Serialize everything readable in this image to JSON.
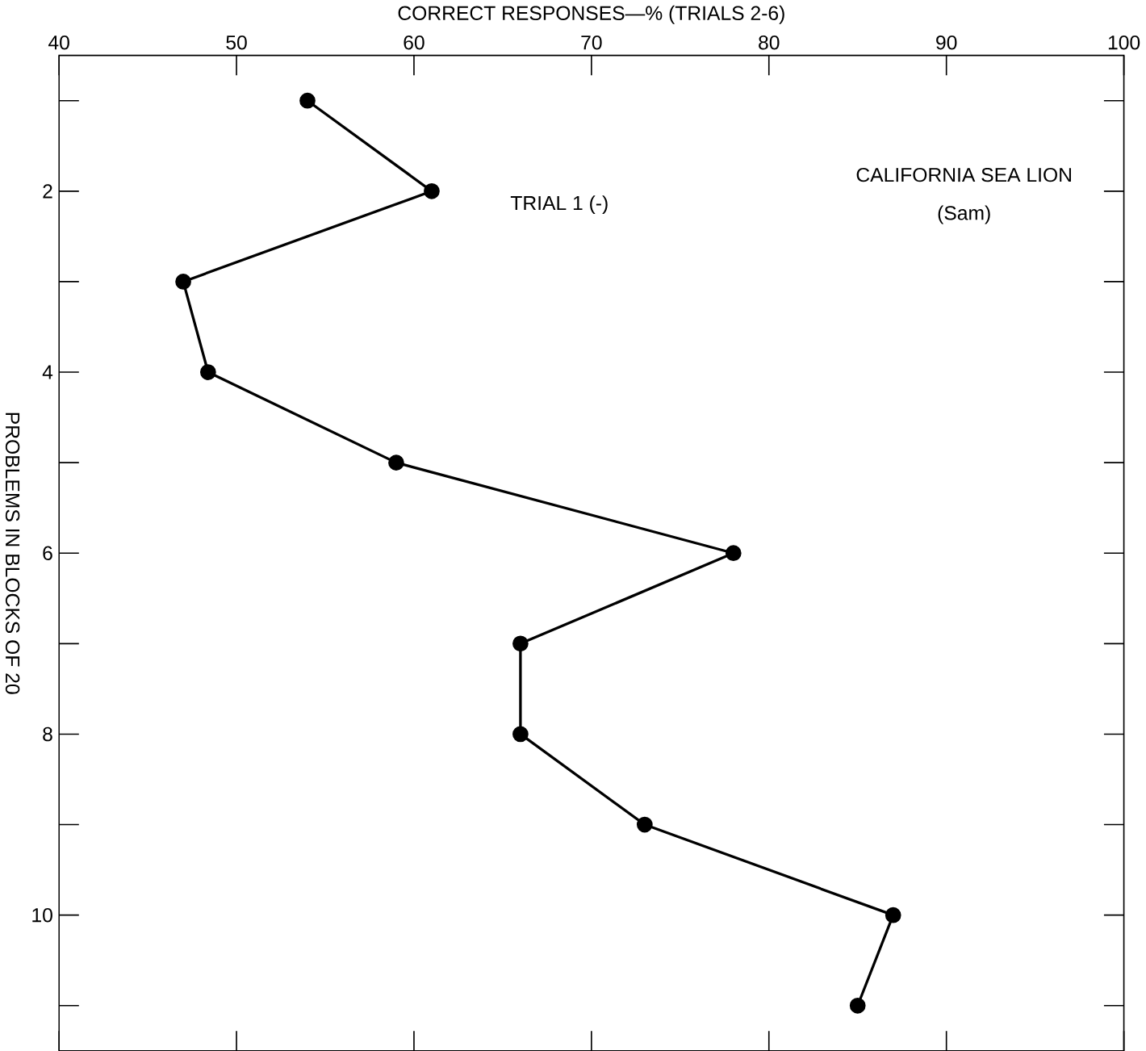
{
  "chart_data": {
    "type": "line",
    "xlabel": "CORRECT RESPONSES—% (TRIALS 2-6)",
    "ylabel": "PROBLEMS IN BLOCKS OF 20",
    "x": [
      54,
      61,
      47,
      48.4,
      59,
      78,
      66,
      66,
      73,
      87,
      85
    ],
    "values": [
      1,
      2,
      3,
      4,
      5,
      6,
      7,
      8,
      9,
      10,
      11
    ],
    "color": "#000000",
    "marker": "circle",
    "line_style": "solid",
    "xlim": [
      40,
      100
    ],
    "ylim": [
      11.5,
      0.5
    ],
    "xticks": [
      40,
      50,
      60,
      70,
      80,
      90,
      100
    ],
    "yticks": [
      {
        "value": 1,
        "label": null
      },
      2,
      {
        "value": 3,
        "label": null
      },
      4,
      {
        "value": 5,
        "label": null
      },
      6,
      {
        "value": 7,
        "label": null
      },
      8,
      {
        "value": 9,
        "label": null
      },
      10,
      {
        "value": 11,
        "label": null
      }
    ],
    "annotations": [
      "CALIFORNIA SEA LION",
      "(Sam)",
      "TRIAL 1 (-)"
    ]
  }
}
